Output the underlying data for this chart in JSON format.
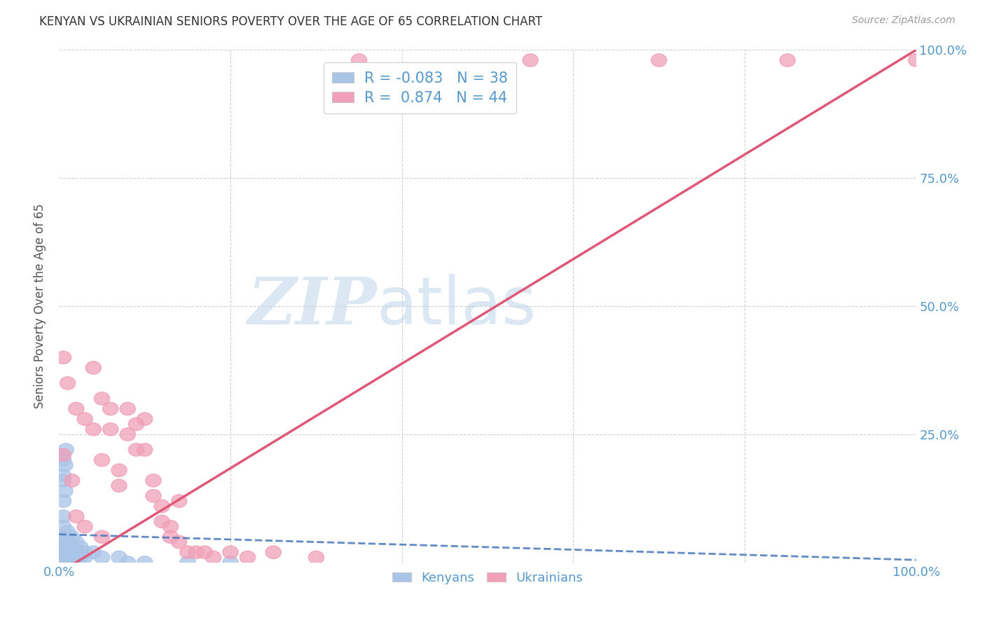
{
  "title": "KENYAN VS UKRAINIAN SENIORS POVERTY OVER THE AGE OF 65 CORRELATION CHART",
  "source": "Source: ZipAtlas.com",
  "ylabel": "Seniors Poverty Over the Age of 65",
  "watermark_zip": "ZIP",
  "watermark_atlas": "atlas",
  "kenyan_R": -0.083,
  "kenyan_N": 38,
  "ukrainian_R": 0.874,
  "ukrainian_N": 44,
  "kenyan_color": "#aac4e8",
  "ukrainian_color": "#f0a0b8",
  "kenyan_line_color": "#4477bb",
  "ukrainian_line_color": "#e05878",
  "background_color": "#ffffff",
  "grid_color": "#cccccc",
  "title_color": "#333333",
  "axis_label_color": "#5599cc",
  "kenyan_line_style": "--",
  "ukrainian_line_style": "-",
  "kenyan_slope": -0.05,
  "kenyan_intercept": 0.055,
  "ukrainian_slope": 1.02,
  "ukrainian_intercept": -0.02,
  "kenyan_points": [
    [
      0.005,
      0.17
    ],
    [
      0.005,
      0.2
    ],
    [
      0.005,
      0.16
    ],
    [
      0.007,
      0.14
    ],
    [
      0.007,
      0.19
    ],
    [
      0.008,
      0.22
    ],
    [
      0.005,
      0.12
    ],
    [
      0.005,
      0.09
    ],
    [
      0.005,
      0.07
    ],
    [
      0.005,
      0.05
    ],
    [
      0.005,
      0.04
    ],
    [
      0.005,
      0.03
    ],
    [
      0.005,
      0.02
    ],
    [
      0.005,
      0.01
    ],
    [
      0.005,
      0.0
    ],
    [
      0.01,
      0.06
    ],
    [
      0.01,
      0.04
    ],
    [
      0.01,
      0.03
    ],
    [
      0.01,
      0.02
    ],
    [
      0.01,
      0.01
    ],
    [
      0.01,
      0.0
    ],
    [
      0.015,
      0.05
    ],
    [
      0.015,
      0.03
    ],
    [
      0.015,
      0.02
    ],
    [
      0.02,
      0.04
    ],
    [
      0.02,
      0.02
    ],
    [
      0.02,
      0.01
    ],
    [
      0.025,
      0.03
    ],
    [
      0.025,
      0.01
    ],
    [
      0.03,
      0.02
    ],
    [
      0.03,
      0.01
    ],
    [
      0.04,
      0.02
    ],
    [
      0.05,
      0.01
    ],
    [
      0.07,
      0.01
    ],
    [
      0.08,
      0.0
    ],
    [
      0.1,
      0.0
    ],
    [
      0.15,
      0.0
    ],
    [
      0.2,
      0.0
    ]
  ],
  "ukrainian_points": [
    [
      0.005,
      0.4
    ],
    [
      0.01,
      0.35
    ],
    [
      0.02,
      0.3
    ],
    [
      0.03,
      0.28
    ],
    [
      0.04,
      0.38
    ],
    [
      0.04,
      0.26
    ],
    [
      0.05,
      0.32
    ],
    [
      0.05,
      0.2
    ],
    [
      0.06,
      0.3
    ],
    [
      0.06,
      0.26
    ],
    [
      0.07,
      0.18
    ],
    [
      0.07,
      0.15
    ],
    [
      0.08,
      0.3
    ],
    [
      0.08,
      0.25
    ],
    [
      0.09,
      0.27
    ],
    [
      0.09,
      0.22
    ],
    [
      0.1,
      0.28
    ],
    [
      0.1,
      0.22
    ],
    [
      0.11,
      0.16
    ],
    [
      0.11,
      0.13
    ],
    [
      0.12,
      0.11
    ],
    [
      0.12,
      0.08
    ],
    [
      0.13,
      0.07
    ],
    [
      0.13,
      0.05
    ],
    [
      0.14,
      0.12
    ],
    [
      0.14,
      0.04
    ],
    [
      0.15,
      0.02
    ],
    [
      0.16,
      0.02
    ],
    [
      0.17,
      0.02
    ],
    [
      0.18,
      0.01
    ],
    [
      0.2,
      0.02
    ],
    [
      0.22,
      0.01
    ],
    [
      0.25,
      0.02
    ],
    [
      0.3,
      0.01
    ],
    [
      0.35,
      0.98
    ],
    [
      0.55,
      0.98
    ],
    [
      0.7,
      0.98
    ],
    [
      0.85,
      0.98
    ],
    [
      1.0,
      0.98
    ],
    [
      0.005,
      0.21
    ],
    [
      0.015,
      0.16
    ],
    [
      0.02,
      0.09
    ],
    [
      0.03,
      0.07
    ],
    [
      0.05,
      0.05
    ]
  ]
}
